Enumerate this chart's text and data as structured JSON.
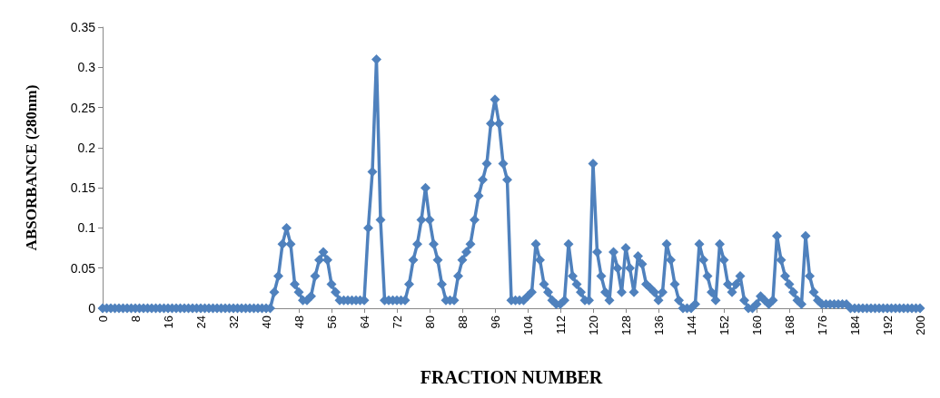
{
  "chart_data": {
    "type": "line",
    "xlabel": "FRACTION NUMBER",
    "ylabel": "ABSORBANCE (280nm)",
    "x": [
      0,
      1,
      2,
      3,
      4,
      5,
      6,
      7,
      8,
      9,
      10,
      11,
      12,
      13,
      14,
      15,
      16,
      17,
      18,
      19,
      20,
      21,
      22,
      23,
      24,
      25,
      26,
      27,
      28,
      29,
      30,
      31,
      32,
      33,
      34,
      35,
      36,
      37,
      38,
      39,
      40,
      41,
      42,
      43,
      44,
      45,
      46,
      47,
      48,
      49,
      50,
      51,
      52,
      53,
      54,
      55,
      56,
      57,
      58,
      59,
      60,
      61,
      62,
      63,
      64,
      65,
      66,
      67,
      68,
      69,
      70,
      71,
      72,
      73,
      74,
      75,
      76,
      77,
      78,
      79,
      80,
      81,
      82,
      83,
      84,
      85,
      86,
      87,
      88,
      89,
      90,
      91,
      92,
      93,
      94,
      95,
      96,
      97,
      98,
      99,
      100,
      101,
      102,
      103,
      104,
      105,
      106,
      107,
      108,
      109,
      110,
      111,
      112,
      113,
      114,
      115,
      116,
      117,
      118,
      119,
      120,
      121,
      122,
      123,
      124,
      125,
      126,
      127,
      128,
      129,
      130,
      131,
      132,
      133,
      134,
      135,
      136,
      137,
      138,
      139,
      140,
      141,
      142,
      143,
      144,
      145,
      146,
      147,
      148,
      149,
      150,
      151,
      152,
      153,
      154,
      155,
      156,
      157,
      158,
      159,
      160,
      161,
      162,
      163,
      164,
      165,
      166,
      167,
      168,
      169,
      170,
      171,
      172,
      173,
      174,
      175,
      176,
      177,
      178,
      179,
      180,
      181,
      182,
      183,
      184,
      185,
      186,
      187,
      188,
      189,
      190,
      191,
      192,
      193,
      194,
      195,
      196,
      197,
      198,
      199,
      200
    ],
    "series": [
      {
        "color": "#4f81bd",
        "values": [
          0,
          0,
          0,
          0,
          0,
          0,
          0,
          0,
          0,
          0,
          0,
          0,
          0,
          0,
          0,
          0,
          0,
          0,
          0,
          0,
          0,
          0,
          0,
          0,
          0,
          0,
          0,
          0,
          0,
          0,
          0,
          0,
          0,
          0,
          0,
          0,
          0,
          0,
          0,
          0,
          0,
          0,
          0.02,
          0.04,
          0.08,
          0.1,
          0.08,
          0.03,
          0.02,
          0.01,
          0.01,
          0.015,
          0.04,
          0.06,
          0.07,
          0.06,
          0.03,
          0.02,
          0.01,
          0.01,
          0.01,
          0.01,
          0.01,
          0.01,
          0.01,
          0.1,
          0.17,
          0.31,
          0.11,
          0.01,
          0.01,
          0.01,
          0.01,
          0.01,
          0.01,
          0.03,
          0.06,
          0.08,
          0.11,
          0.15,
          0.11,
          0.08,
          0.06,
          0.03,
          0.01,
          0.01,
          0.01,
          0.04,
          0.06,
          0.07,
          0.08,
          0.11,
          0.14,
          0.16,
          0.18,
          0.23,
          0.26,
          0.23,
          0.18,
          0.16,
          0.01,
          0.01,
          0.01,
          0.01,
          0.015,
          0.02,
          0.08,
          0.06,
          0.03,
          0.02,
          0.01,
          0.005,
          0.005,
          0.01,
          0.08,
          0.04,
          0.03,
          0.02,
          0.01,
          0.01,
          0.18,
          0.07,
          0.04,
          0.02,
          0.01,
          0.07,
          0.05,
          0.02,
          0.075,
          0.05,
          0.02,
          0.065,
          0.055,
          0.03,
          0.025,
          0.02,
          0.01,
          0.02,
          0.08,
          0.06,
          0.03,
          0.01,
          0,
          0,
          0,
          0.005,
          0.08,
          0.06,
          0.04,
          0.02,
          0.01,
          0.08,
          0.06,
          0.03,
          0.02,
          0.03,
          0.04,
          0.01,
          0,
          0,
          0.005,
          0.015,
          0.01,
          0.005,
          0.01,
          0.09,
          0.06,
          0.04,
          0.03,
          0.02,
          0.01,
          0.005,
          0.09,
          0.04,
          0.02,
          0.01,
          0.005,
          0.005,
          0.005,
          0.005,
          0.005,
          0.005,
          0.005,
          0,
          0,
          0,
          0,
          0,
          0,
          0,
          0,
          0,
          0,
          0,
          0,
          0,
          0,
          0,
          0,
          0,
          0
        ]
      }
    ],
    "xlim": [
      0,
      200
    ],
    "xticks": [
      0,
      8,
      16,
      24,
      32,
      40,
      48,
      56,
      64,
      72,
      80,
      88,
      96,
      104,
      112,
      120,
      128,
      136,
      144,
      152,
      160,
      168,
      176,
      184,
      192,
      200
    ],
    "ylim": [
      0,
      0.35
    ],
    "yticks": [
      0,
      0.05,
      0.1,
      0.15,
      0.2,
      0.25,
      0.3,
      0.35
    ],
    "marker": "diamond",
    "line_style": "solid"
  }
}
